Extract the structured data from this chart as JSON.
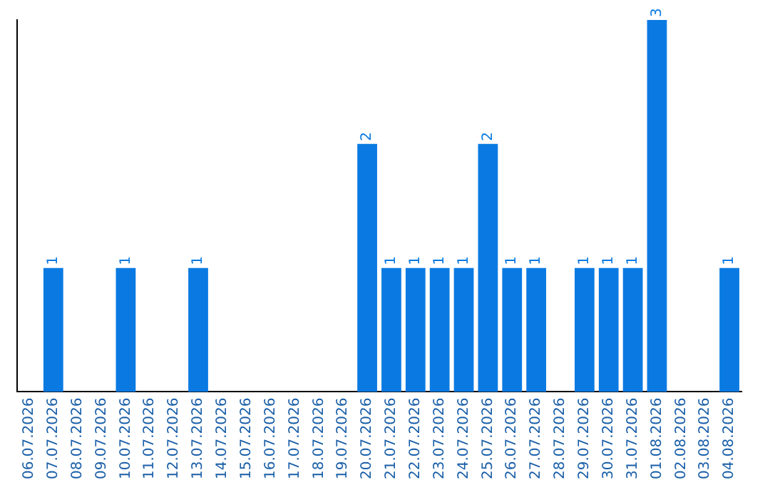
{
  "chart_data": {
    "type": "bar",
    "categories": [
      "06.07.2026",
      "07.07.2026",
      "08.07.2026",
      "09.07.2026",
      "10.07.2026",
      "11.07.2026",
      "12.07.2026",
      "13.07.2026",
      "14.07.2026",
      "15.07.2026",
      "16.07.2026",
      "17.07.2026",
      "18.07.2026",
      "19.07.2026",
      "20.07.2026",
      "21.07.2026",
      "22.07.2026",
      "23.07.2026",
      "24.07.2026",
      "25.07.2026",
      "26.07.2026",
      "27.07.2026",
      "28.07.2026",
      "29.07.2026",
      "30.07.2026",
      "31.07.2026",
      "01.08.2026",
      "02.08.2026",
      "03.08.2026",
      "04.08.2026"
    ],
    "values": [
      0,
      1,
      0,
      0,
      1,
      0,
      0,
      1,
      0,
      0,
      0,
      0,
      0,
      0,
      2,
      1,
      1,
      1,
      1,
      2,
      1,
      1,
      0,
      1,
      1,
      1,
      3,
      0,
      0,
      1
    ],
    "value_labels": [
      null,
      "1",
      null,
      null,
      "1",
      null,
      null,
      "1",
      null,
      null,
      null,
      null,
      null,
      null,
      "2",
      "1",
      "1",
      "1",
      "1",
      "2",
      "1",
      "1",
      null,
      "1",
      "1",
      "1",
      "3",
      null,
      null,
      "1"
    ],
    "color": "#0a7ae2",
    "grid": false,
    "legend": false,
    "tick_labels": "x"
  }
}
